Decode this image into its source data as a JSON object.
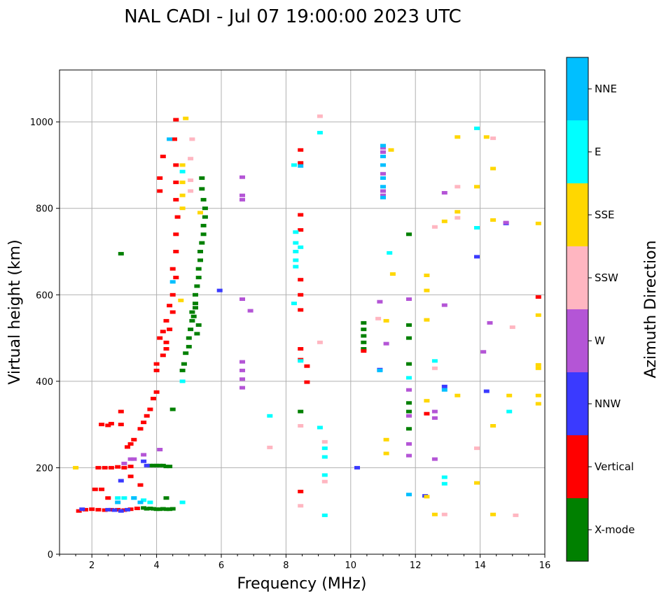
{
  "chart_data": {
    "type": "scatter",
    "title": "NAL CADI - Jul 07 19:00:00 2023 UTC",
    "xlabel": "Frequency (MHz)",
    "ylabel": "Virtual height (km)",
    "xlim": [
      1,
      16
    ],
    "ylim": [
      0,
      1120
    ],
    "xticks": [
      2,
      4,
      6,
      8,
      10,
      12,
      14,
      16
    ],
    "yticks": [
      0,
      200,
      400,
      600,
      800,
      1000
    ],
    "grid": true,
    "colorbar": {
      "label": "Azimuth Direction",
      "position": "right",
      "categories": [
        {
          "name": "X-mode",
          "color": "#008000"
        },
        {
          "name": "Vertical",
          "color": "#ff0000"
        },
        {
          "name": "NNW",
          "color": "#3a3aff"
        },
        {
          "name": "W",
          "color": "#b455d6"
        },
        {
          "name": "SSW",
          "color": "#ffb6c1"
        },
        {
          "name": "SSE",
          "color": "#ffd700"
        },
        {
          "name": "E",
          "color": "#00ffff"
        },
        {
          "name": "NNE",
          "color": "#00bfff"
        }
      ]
    },
    "series": [
      {
        "name": "X-mode",
        "points": [
          [
            2.9,
            695
          ],
          [
            3.8,
            205
          ],
          [
            3.9,
            205
          ],
          [
            4.0,
            205
          ],
          [
            4.1,
            205
          ],
          [
            4.2,
            205
          ],
          [
            4.3,
            203
          ],
          [
            4.4,
            203
          ],
          [
            3.6,
            107
          ],
          [
            3.7,
            105
          ],
          [
            3.8,
            106
          ],
          [
            3.9,
            105
          ],
          [
            4.0,
            104
          ],
          [
            4.1,
            104
          ],
          [
            4.2,
            105
          ],
          [
            4.3,
            104
          ],
          [
            4.4,
            104
          ],
          [
            4.5,
            105
          ],
          [
            4.3,
            130
          ],
          [
            4.5,
            335
          ],
          [
            4.8,
            425
          ],
          [
            4.85,
            440
          ],
          [
            4.9,
            465
          ],
          [
            5.0,
            480
          ],
          [
            5.0,
            500
          ],
          [
            5.05,
            520
          ],
          [
            5.1,
            540
          ],
          [
            5.1,
            560
          ],
          [
            5.2,
            580
          ],
          [
            5.2,
            600
          ],
          [
            5.25,
            620
          ],
          [
            5.3,
            640
          ],
          [
            5.3,
            660
          ],
          [
            5.35,
            680
          ],
          [
            5.35,
            700
          ],
          [
            5.4,
            720
          ],
          [
            5.45,
            740
          ],
          [
            5.45,
            760
          ],
          [
            5.5,
            780
          ],
          [
            5.5,
            800
          ],
          [
            5.45,
            820
          ],
          [
            5.4,
            845
          ],
          [
            5.4,
            870
          ],
          [
            5.25,
            510
          ],
          [
            5.3,
            530
          ],
          [
            5.15,
            550
          ],
          [
            5.2,
            570
          ],
          [
            10.4,
            475
          ],
          [
            10.4,
            490
          ],
          [
            10.4,
            505
          ],
          [
            10.4,
            520
          ],
          [
            10.4,
            535
          ],
          [
            11.8,
            290
          ],
          [
            11.8,
            330
          ],
          [
            11.8,
            350
          ],
          [
            11.8,
            440
          ],
          [
            11.8,
            500
          ],
          [
            11.8,
            530
          ],
          [
            11.8,
            740
          ],
          [
            8.45,
            330
          ]
        ]
      },
      {
        "name": "Vertical",
        "points": [
          [
            1.6,
            100
          ],
          [
            1.8,
            103
          ],
          [
            2.0,
            104
          ],
          [
            2.2,
            103
          ],
          [
            2.4,
            102
          ],
          [
            2.6,
            103
          ],
          [
            2.8,
            103
          ],
          [
            3.0,
            102
          ],
          [
            3.2,
            104
          ],
          [
            3.4,
            106
          ],
          [
            2.2,
            200
          ],
          [
            2.4,
            200
          ],
          [
            2.6,
            200
          ],
          [
            2.8,
            202
          ],
          [
            3.0,
            200
          ],
          [
            3.2,
            203
          ],
          [
            2.3,
            300
          ],
          [
            2.5,
            298
          ],
          [
            2.6,
            302
          ],
          [
            2.9,
            300
          ],
          [
            3.1,
            248
          ],
          [
            3.2,
            255
          ],
          [
            3.3,
            265
          ],
          [
            3.5,
            290
          ],
          [
            3.6,
            305
          ],
          [
            3.7,
            320
          ],
          [
            3.8,
            335
          ],
          [
            3.9,
            360
          ],
          [
            4.0,
            375
          ],
          [
            4.0,
            425
          ],
          [
            4.0,
            440
          ],
          [
            4.2,
            460
          ],
          [
            4.3,
            475
          ],
          [
            4.3,
            490
          ],
          [
            4.1,
            500
          ],
          [
            4.2,
            515
          ],
          [
            4.4,
            520
          ],
          [
            4.3,
            540
          ],
          [
            4.5,
            560
          ],
          [
            4.4,
            575
          ],
          [
            4.5,
            600
          ],
          [
            4.6,
            640
          ],
          [
            4.5,
            660
          ],
          [
            4.6,
            700
          ],
          [
            4.6,
            740
          ],
          [
            4.65,
            780
          ],
          [
            4.6,
            820
          ],
          [
            4.6,
            860
          ],
          [
            4.6,
            900
          ],
          [
            4.55,
            960
          ],
          [
            4.6,
            1005
          ],
          [
            4.1,
            840
          ],
          [
            4.1,
            870
          ],
          [
            4.2,
            920
          ],
          [
            2.1,
            150
          ],
          [
            2.3,
            150
          ],
          [
            2.5,
            130
          ],
          [
            3.2,
            180
          ],
          [
            3.5,
            160
          ],
          [
            2.9,
            330
          ],
          [
            8.45,
            935
          ],
          [
            8.45,
            905
          ],
          [
            8.45,
            785
          ],
          [
            8.45,
            750
          ],
          [
            8.45,
            635
          ],
          [
            8.45,
            600
          ],
          [
            8.45,
            565
          ],
          [
            8.45,
            475
          ],
          [
            8.45,
            450
          ],
          [
            8.45,
            145
          ],
          [
            8.65,
            435
          ],
          [
            8.65,
            398
          ],
          [
            10.4,
            470
          ],
          [
            15.8,
            595
          ],
          [
            12.35,
            325
          ]
        ]
      },
      {
        "name": "NNW",
        "points": [
          [
            1.7,
            104
          ],
          [
            2.5,
            103
          ],
          [
            2.7,
            102
          ],
          [
            2.9,
            100
          ],
          [
            3.1,
            103
          ],
          [
            3.6,
            215
          ],
          [
            3.7,
            205
          ],
          [
            2.9,
            170
          ],
          [
            5.95,
            610
          ],
          [
            10.9,
            427
          ],
          [
            12.9,
            388
          ],
          [
            13.9,
            688
          ],
          [
            14.2,
            377
          ],
          [
            14.8,
            765
          ],
          [
            12.3,
            135
          ],
          [
            10.2,
            200
          ]
        ]
      },
      {
        "name": "W",
        "points": [
          [
            3.2,
            220
          ],
          [
            3.0,
            210
          ],
          [
            3.3,
            220
          ],
          [
            3.6,
            230
          ],
          [
            4.1,
            242
          ],
          [
            6.65,
            872
          ],
          [
            6.65,
            830
          ],
          [
            6.65,
            820
          ],
          [
            6.65,
            590
          ],
          [
            6.65,
            445
          ],
          [
            6.65,
            425
          ],
          [
            6.65,
            405
          ],
          [
            6.65,
            385
          ],
          [
            6.9,
            563
          ],
          [
            10.9,
            584
          ],
          [
            11.1,
            487
          ],
          [
            11.0,
            940
          ],
          [
            11.0,
            930
          ],
          [
            11.0,
            880
          ],
          [
            11.0,
            840
          ],
          [
            11.0,
            830
          ],
          [
            11.8,
            590
          ],
          [
            11.8,
            380
          ],
          [
            11.8,
            320
          ],
          [
            11.8,
            255
          ],
          [
            11.8,
            228
          ],
          [
            12.9,
            836
          ],
          [
            12.9,
            576
          ],
          [
            12.6,
            330
          ],
          [
            12.6,
            315
          ],
          [
            12.6,
            220
          ],
          [
            14.3,
            535
          ],
          [
            14.1,
            468
          ],
          [
            14.8,
            767
          ]
        ]
      },
      {
        "name": "SSW",
        "points": [
          [
            5.1,
            960
          ],
          [
            5.05,
            915
          ],
          [
            5.05,
            865
          ],
          [
            5.05,
            840
          ],
          [
            9.05,
            1013
          ],
          [
            9.05,
            490
          ],
          [
            9.2,
            260
          ],
          [
            9.2,
            168
          ],
          [
            8.45,
            297
          ],
          [
            8.45,
            112
          ],
          [
            7.5,
            247
          ],
          [
            10.85,
            545
          ],
          [
            12.6,
            757
          ],
          [
            12.6,
            430
          ],
          [
            12.9,
            92
          ],
          [
            13.3,
            850
          ],
          [
            13.3,
            778
          ],
          [
            13.9,
            245
          ],
          [
            14.4,
            962
          ],
          [
            15.0,
            525
          ],
          [
            15.1,
            90
          ]
        ]
      },
      {
        "name": "SSE",
        "points": [
          [
            1.5,
            200
          ],
          [
            4.9,
            1008
          ],
          [
            4.8,
            900
          ],
          [
            4.8,
            860
          ],
          [
            4.8,
            830
          ],
          [
            4.8,
            800
          ],
          [
            4.75,
            587
          ],
          [
            5.35,
            790
          ],
          [
            11.1,
            540
          ],
          [
            11.1,
            265
          ],
          [
            11.1,
            233
          ],
          [
            11.25,
            935
          ],
          [
            11.3,
            648
          ],
          [
            12.35,
            645
          ],
          [
            12.35,
            610
          ],
          [
            12.35,
            542
          ],
          [
            12.35,
            355
          ],
          [
            12.35,
            133
          ],
          [
            12.6,
            92
          ],
          [
            12.9,
            770
          ],
          [
            13.3,
            965
          ],
          [
            13.3,
            792
          ],
          [
            13.3,
            367
          ],
          [
            13.9,
            850
          ],
          [
            13.9,
            165
          ],
          [
            14.2,
            965
          ],
          [
            14.4,
            892
          ],
          [
            14.4,
            773
          ],
          [
            14.4,
            297
          ],
          [
            14.4,
            92
          ],
          [
            14.9,
            367
          ],
          [
            15.8,
            765
          ],
          [
            15.8,
            553
          ],
          [
            15.8,
            438
          ],
          [
            15.8,
            430
          ],
          [
            15.8,
            367
          ],
          [
            15.8,
            348
          ]
        ]
      },
      {
        "name": "E",
        "points": [
          [
            2.8,
            130
          ],
          [
            3.0,
            130
          ],
          [
            3.3,
            130
          ],
          [
            3.6,
            125
          ],
          [
            3.8,
            120
          ],
          [
            4.8,
            120
          ],
          [
            4.8,
            400
          ],
          [
            4.8,
            885
          ],
          [
            7.5,
            320
          ],
          [
            8.3,
            745
          ],
          [
            8.3,
            720
          ],
          [
            8.3,
            700
          ],
          [
            8.3,
            680
          ],
          [
            8.3,
            665
          ],
          [
            8.25,
            580
          ],
          [
            8.45,
            710
          ],
          [
            8.45,
            447
          ],
          [
            9.05,
            975
          ],
          [
            9.05,
            293
          ],
          [
            9.2,
            245
          ],
          [
            9.2,
            225
          ],
          [
            9.2,
            183
          ],
          [
            9.2,
            90
          ],
          [
            11.2,
            697
          ],
          [
            11.8,
            408
          ],
          [
            12.6,
            447
          ],
          [
            12.9,
            178
          ],
          [
            12.9,
            163
          ],
          [
            13.9,
            755
          ],
          [
            14.9,
            330
          ],
          [
            8.25,
            900
          ],
          [
            13.9,
            985
          ]
        ]
      },
      {
        "name": "NNE",
        "points": [
          [
            3.3,
            130
          ],
          [
            3.5,
            120
          ],
          [
            2.8,
            120
          ],
          [
            4.4,
            960
          ],
          [
            4.5,
            630
          ],
          [
            8.45,
            898
          ],
          [
            10.9,
            425
          ],
          [
            11.0,
            945
          ],
          [
            11.0,
            920
          ],
          [
            11.0,
            900
          ],
          [
            11.0,
            870
          ],
          [
            11.0,
            850
          ],
          [
            11.0,
            825
          ],
          [
            11.8,
            138
          ],
          [
            12.9,
            380
          ]
        ]
      }
    ]
  }
}
